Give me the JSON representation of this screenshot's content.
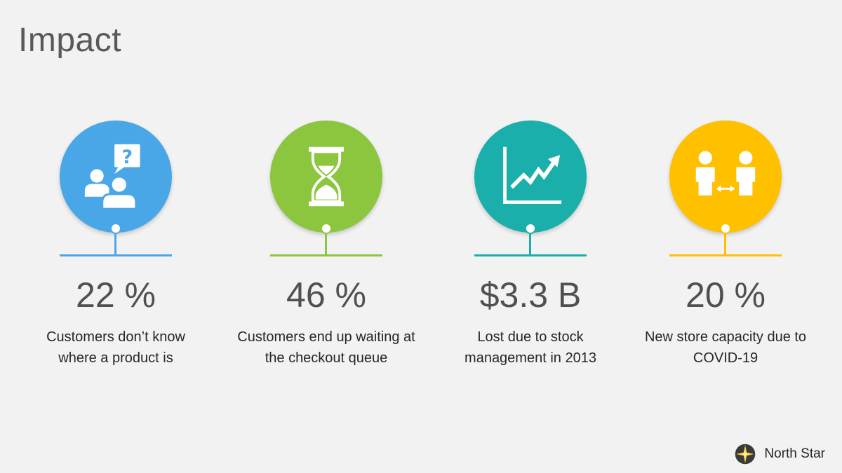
{
  "slide": {
    "title": "Impact"
  },
  "metrics": [
    {
      "value": "22 %",
      "line1": "Customers don’t know",
      "line2": "where a product is",
      "color": "#4aa7e7",
      "icon": "people-question-icon"
    },
    {
      "value": "46 %",
      "line1": "Customers end up waiting at",
      "line2": "the checkout queue",
      "color": "#8cc63f",
      "icon": "hourglass-icon"
    },
    {
      "value": "$3.3 B",
      "line1": "Lost due to stock",
      "line2": "management in 2013",
      "color": "#1aafaa",
      "icon": "trend-chart-icon"
    },
    {
      "value": "20 %",
      "line1": "New store capacity due to",
      "line2": "COVID-19",
      "color": "#ffc000",
      "icon": "social-distance-icon"
    }
  ],
  "brand": {
    "name": "North Star",
    "icon": "north-star-logo-icon"
  }
}
